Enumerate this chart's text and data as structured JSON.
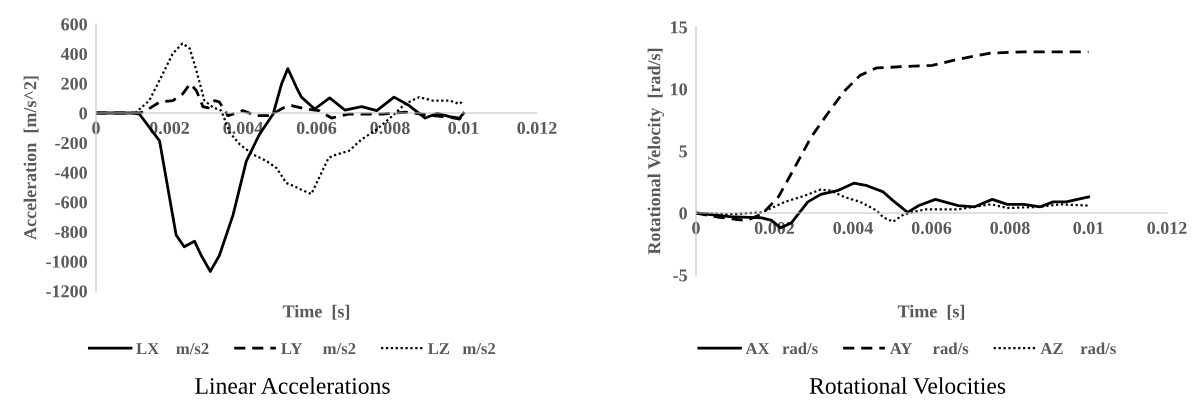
{
  "chart_data": [
    {
      "type": "line",
      "title": "Linear Accelerations",
      "xlabel": "Time  [s]",
      "ylabel": "Acceleration  [m/s^2]",
      "xlim": [
        0,
        0.012
      ],
      "xticks": [
        0,
        0.002,
        0.004,
        0.006,
        0.008,
        0.01,
        0.012
      ],
      "ylim": [
        -1200,
        600
      ],
      "yticks": [
        -1200,
        -1000,
        -800,
        -600,
        -400,
        -200,
        0,
        200,
        400,
        600
      ],
      "grid": false,
      "legend": "bottom",
      "series": [
        {
          "name": "LX    m/s2",
          "color": "#000000",
          "line_style": "solid",
          "x": [
            0,
            0.001,
            0.00118,
            0.00173,
            0.00218,
            0.0024,
            0.00268,
            0.00286,
            0.00311,
            0.00336,
            0.00373,
            0.00409,
            0.00445,
            0.00482,
            0.00505,
            0.00522,
            0.00545,
            0.00559,
            0.00595,
            0.00636,
            0.00677,
            0.00723,
            0.00764,
            0.00811,
            0.00852,
            0.00896,
            0.00929,
            0.00962,
            0.00989,
            0.01
          ],
          "values": [
            0,
            0,
            -7,
            -188,
            -823,
            -902,
            -864,
            -959,
            -1068,
            -959,
            -687,
            -324,
            -143,
            -7,
            197,
            299,
            175,
            107,
            27,
            102,
            20,
            43,
            16,
            107,
            50,
            -34,
            -2,
            -25,
            -34,
            -2
          ]
        },
        {
          "name": "LY     m/s2",
          "color": "#000000",
          "line_style": "dashed",
          "x": [
            0,
            0.0012,
            0.00136,
            0.00173,
            0.00209,
            0.00236,
            0.00256,
            0.00273,
            0.00291,
            0.00305,
            0.00323,
            0.00336,
            0.00359,
            0.004,
            0.00436,
            0.00473,
            0.00509,
            0.00532,
            0.0057,
            0.00607,
            0.00641,
            0.00687,
            0.0078,
            0.00843,
            0.00871,
            0.00916,
            0.00962,
            0.00989,
            0.01
          ],
          "values": [
            0,
            0,
            16,
            73,
            84,
            129,
            197,
            152,
            43,
            34,
            84,
            73,
            -18,
            16,
            -18,
            -18,
            34,
            50,
            27,
            16,
            -34,
            -7,
            -7,
            5,
            -2,
            -18,
            -29,
            -41,
            -7
          ]
        },
        {
          "name": "LZ   m/s2",
          "color": "#000000",
          "line_style": "dotted",
          "x": [
            0,
            0.001,
            0.00109,
            0.00145,
            0.00182,
            0.00209,
            0.00235,
            0.00255,
            0.00273,
            0.00295,
            0.00318,
            0.00341,
            0.00364,
            0.00391,
            0.00427,
            0.00464,
            0.00491,
            0.00518,
            0.0054,
            0.00559,
            0.00586,
            0.00633,
            0.00655,
            0.00688,
            0.00723,
            0.00759,
            0.00797,
            0.00841,
            0.00879,
            0.00915,
            0.00962,
            0.00989,
            0.01
          ],
          "values": [
            0,
            0,
            5,
            84,
            265,
            401,
            469,
            435,
            288,
            84,
            39,
            16,
            -132,
            -211,
            -279,
            -324,
            -370,
            -472,
            -494,
            -517,
            -546,
            -302,
            -279,
            -256,
            -177,
            -120,
            -41,
            61,
            107,
            84,
            84,
            61,
            84
          ]
        }
      ]
    },
    {
      "type": "line",
      "title": "Rotational Velocities",
      "xlabel": "Time  [s]",
      "ylabel": "Rotational Velocity  [rad/s]",
      "xlim": [
        0,
        0.012
      ],
      "xticks": [
        0,
        0.002,
        0.004,
        0.006,
        0.008,
        0.01,
        0.012
      ],
      "ylim": [
        -5,
        15
      ],
      "yticks": [
        -5,
        0,
        5,
        10,
        15
      ],
      "grid": false,
      "legend": "bottom",
      "series": [
        {
          "name": "AX   rad/s",
          "color": "#000000",
          "line_style": "solid",
          "x": [
            0,
            0.00086,
            0.00168,
            0.00193,
            0.00215,
            0.00243,
            0.00285,
            0.00318,
            0.0036,
            0.00402,
            0.00436,
            0.00477,
            0.00502,
            0.00539,
            0.00568,
            0.0061,
            0.00668,
            0.0071,
            0.00755,
            0.00793,
            0.00835,
            0.00877,
            0.0091,
            0.00943,
            0.01
          ],
          "values": [
            0,
            -0.3,
            -0.4,
            -0.6,
            -1.2,
            -0.8,
            0.9,
            1.5,
            1.8,
            2.4,
            2.2,
            1.7,
            1.0,
            0.05,
            0.6,
            1.1,
            0.6,
            0.5,
            1.1,
            0.7,
            0.7,
            0.5,
            0.9,
            0.9,
            1.3
          ]
        },
        {
          "name": "AY     rad/s",
          "color": "#000000",
          "line_style": "dashed",
          "x": [
            0,
            0.0006,
            0.00127,
            0.00168,
            0.0021,
            0.00252,
            0.00293,
            0.00335,
            0.00377,
            0.00418,
            0.0046,
            0.00527,
            0.00602,
            0.00668,
            0.00752,
            0.00835,
            0.00918,
            0.01
          ],
          "values": [
            0,
            -0.35,
            -0.6,
            -0.1,
            1.3,
            3.7,
            6.1,
            8.0,
            9.8,
            11.1,
            11.7,
            11.8,
            11.9,
            12.4,
            12.9,
            13.0,
            13.0,
            13.0
          ]
        },
        {
          "name": "AZ    rad/s",
          "color": "#000000",
          "line_style": "dotted",
          "x": [
            0,
            0.00086,
            0.00168,
            0.00227,
            0.00277,
            0.00318,
            0.00343,
            0.00377,
            0.00418,
            0.0046,
            0.00477,
            0.00502,
            0.0053,
            0.00585,
            0.00668,
            0.00752,
            0.00793,
            0.00877,
            0.00927,
            0.01
          ],
          "values": [
            0,
            -0.1,
            0.05,
            0.9,
            1.4,
            1.9,
            1.8,
            1.3,
            0.9,
            0.2,
            -0.35,
            -0.7,
            -0.1,
            0.3,
            0.3,
            0.7,
            0.4,
            0.5,
            0.7,
            0.6
          ]
        }
      ]
    }
  ]
}
